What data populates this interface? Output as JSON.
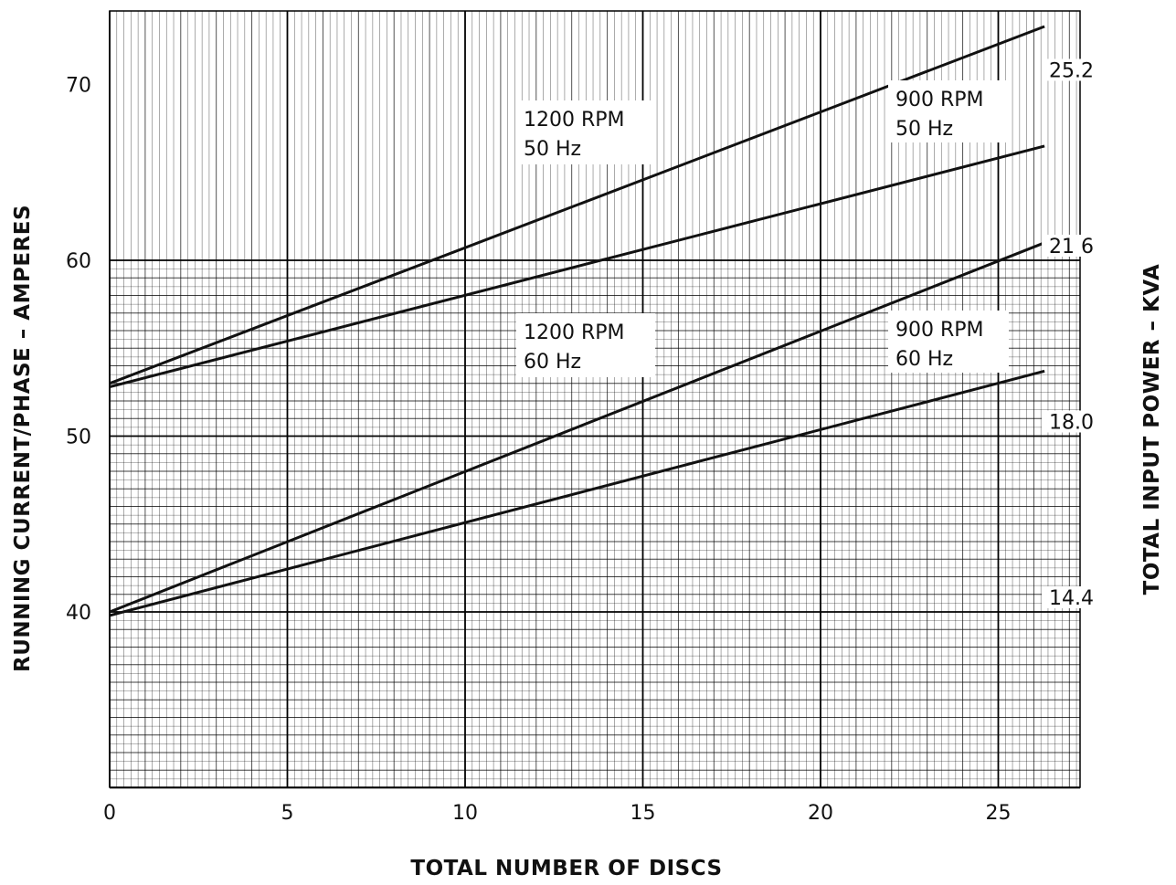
{
  "chart_data": {
    "type": "line",
    "xlabel": "TOTAL NUMBER OF DISCS",
    "ylabel": "RUNNING CURRENT/PHASE – AMPERES",
    "y2label": "TOTAL INPUT POWER – KVA",
    "xlim": [
      0,
      27
    ],
    "ylim": [
      29,
      74
    ],
    "x_ticks": [
      "0",
      "5",
      "10",
      "15",
      "20",
      "25"
    ],
    "x_tick_values": [
      0,
      5,
      10,
      15,
      20,
      25
    ],
    "y_ticks": [
      "40",
      "50",
      "60",
      "70"
    ],
    "y_tick_values": [
      40,
      50,
      60,
      70
    ],
    "y2_ticks": [
      {
        "label": "25.2",
        "y": 70
      },
      {
        "label": "21 6",
        "y": 60
      },
      {
        "label": "18.0",
        "y": 50
      },
      {
        "label": "14.4",
        "y": 40
      }
    ],
    "grid": true,
    "series": [
      {
        "name": "1200 RPM\n50 Hz",
        "line1": "1200 RPM",
        "line2": "50 Hz",
        "x": [
          0,
          26.3
        ],
        "y": [
          53.0,
          73.3
        ]
      },
      {
        "name": "900 RPM\n50 Hz",
        "line1": "900 RPM",
        "line2": "50 Hz",
        "x": [
          0,
          26.3
        ],
        "y": [
          52.8,
          66.5
        ]
      },
      {
        "name": "1200 RPM\n60 Hz",
        "line1": "1200 RPM",
        "line2": "60 Hz",
        "x": [
          0,
          26.3
        ],
        "y": [
          40.0,
          61.0
        ]
      },
      {
        "name": "900 RPM\n60 Hz",
        "line1": "900 RPM",
        "line2": "60 Hz",
        "x": [
          0,
          26.3
        ],
        "y": [
          39.8,
          53.7
        ]
      }
    ]
  }
}
